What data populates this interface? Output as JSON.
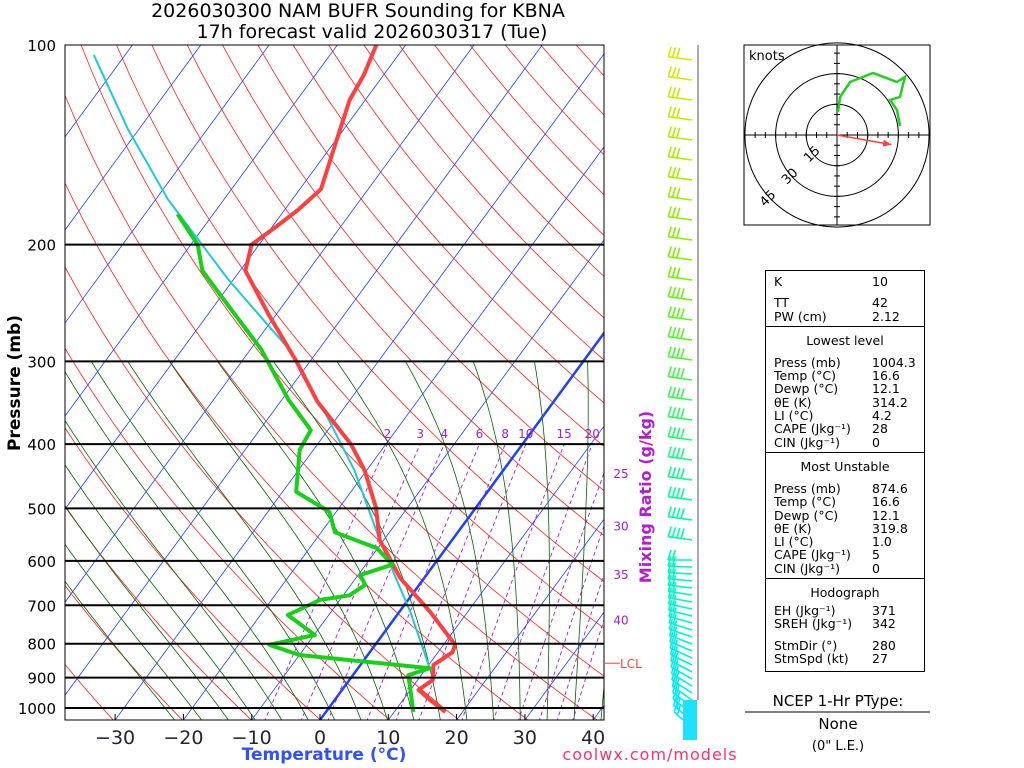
{
  "title": {
    "line1": "2026030300 NAM BUFR Sounding for KBNA",
    "line2": "17h forecast valid 2026030317 (Tue)"
  },
  "footer": {
    "site": "coolwx.com/models"
  },
  "ptype": {
    "header": "NCEP 1-Hr PType:",
    "value": "None",
    "amount": "(0\" L.E.)"
  },
  "stats": {
    "top": [
      [
        "K",
        "10"
      ],
      [
        "TT",
        "42"
      ],
      [
        "PW (cm)",
        "2.12"
      ]
    ],
    "lowest_title": "Lowest level",
    "lowest": [
      [
        "Press (mb)",
        "1004.3"
      ],
      [
        "Temp (°C)",
        "16.6"
      ],
      [
        "Dewp (°C)",
        "12.1"
      ],
      [
        "θE (K)",
        "314.2"
      ],
      [
        "LI (°C)",
        "4.2"
      ],
      [
        "CAPE (Jkg⁻¹)",
        "28"
      ],
      [
        "CIN (Jkg⁻¹)",
        "0"
      ]
    ],
    "mu_title": "Most Unstable",
    "mu": [
      [
        "Press (mb)",
        "874.6"
      ],
      [
        "Temp (°C)",
        "16.6"
      ],
      [
        "Dewp (°C)",
        "12.1"
      ],
      [
        "θE (K)",
        "319.8"
      ],
      [
        "LI (°C)",
        "1.0"
      ],
      [
        "CAPE (Jkg⁻¹)",
        "5"
      ],
      [
        "CIN (Jkg⁻¹)",
        "0"
      ]
    ],
    "hodo_title": "Hodograph",
    "hodo": [
      [
        "EH (Jkg⁻¹)",
        "371"
      ],
      [
        "SREH (Jkg⁻¹)",
        "342"
      ]
    ],
    "storm": [
      [
        "StmDir (°)",
        "280"
      ],
      [
        "StmSpd (kt)",
        "27"
      ]
    ]
  },
  "colors": {
    "temperature": "#ff4040",
    "dewpoint": "#18d018",
    "parcel": "#20c8d8",
    "isotherm": "#2040ff",
    "dry_adiabat": "#ff2020",
    "moist_adiabat": "#006400",
    "mixing_ratio": "#a020d0"
  },
  "chart_data": {
    "type": "line",
    "title": "Skew-T log-P sounding",
    "xlabel": "Temperature (°C)",
    "ylabel": "Pressure (mb)",
    "y2label": "Mixing Ratio (g/kg)",
    "xticks": [
      -30,
      -20,
      -10,
      0,
      10,
      20,
      30,
      40
    ],
    "yticks": [
      100,
      200,
      300,
      400,
      500,
      600,
      700,
      800,
      900,
      1000
    ],
    "ylim": [
      1050,
      100
    ],
    "lcl_label": "LCL",
    "lcl_pressure": 871,
    "mixing_ratio_lines": [
      2,
      3,
      4,
      6,
      8,
      10,
      15,
      20,
      25,
      30,
      35,
      40
    ],
    "series": [
      {
        "name": "temperature",
        "points": [
          [
            1014,
            17.5
          ],
          [
            973,
            14.0
          ],
          [
            939,
            11.2
          ],
          [
            907,
            12.2
          ],
          [
            861,
            10.7
          ],
          [
            824,
            12.1
          ],
          [
            803,
            11.7
          ],
          [
            716,
            4.5
          ],
          [
            637,
            -3.5
          ],
          [
            558,
            -10.6
          ],
          [
            499,
            -14.6
          ],
          [
            438,
            -20.3
          ],
          [
            400,
            -25.1
          ],
          [
            345,
            -34.6
          ],
          [
            300,
            -42.0
          ],
          [
            255,
            -51.1
          ],
          [
            219,
            -59.2
          ],
          [
            200,
            -61.1
          ],
          [
            187,
            -59.3
          ],
          [
            177,
            -58.0
          ],
          [
            165,
            -56.9
          ],
          [
            139,
            -59.9
          ],
          [
            121,
            -62.3
          ],
          [
            111,
            -62.9
          ],
          [
            100,
            -64.3
          ]
        ]
      },
      {
        "name": "dewpoint",
        "points": [
          [
            1014,
            12.8
          ],
          [
            939,
            10.0
          ],
          [
            892,
            8.1
          ],
          [
            871,
            10.5
          ],
          [
            832,
            -10.0
          ],
          [
            803,
            -15.5
          ],
          [
            776,
            -9.9
          ],
          [
            724,
            -16.0
          ],
          [
            687,
            -12.9
          ],
          [
            676,
            -9.1
          ],
          [
            652,
            -7.9
          ],
          [
            630,
            -9.7
          ],
          [
            608,
            -6.1
          ],
          [
            574,
            -10.1
          ],
          [
            543,
            -18.0
          ],
          [
            506,
            -21.0
          ],
          [
            472,
            -28.0
          ],
          [
            408,
            -32.0
          ],
          [
            381,
            -32.5
          ],
          [
            343,
            -39.0
          ],
          [
            288,
            -48.4
          ],
          [
            242,
            -59.3
          ],
          [
            219,
            -65.5
          ],
          [
            200,
            -69.0
          ],
          [
            180,
            -75.2
          ]
        ]
      },
      {
        "name": "parcel",
        "points": [
          [
            871,
            10.5
          ],
          [
            716,
            1.6
          ],
          [
            558,
            -10.6
          ],
          [
            438,
            -21.8
          ],
          [
            368,
            -30.9
          ],
          [
            288,
            -44.3
          ],
          [
            226,
            -60.7
          ],
          [
            171,
            -78.2
          ],
          [
            134,
            -91.6
          ],
          [
            103.5,
            -104.6
          ]
        ]
      }
    ],
    "hodograph": {
      "units_label": "knots",
      "rings": [
        15,
        30,
        45
      ],
      "points_uv": [
        [
          0.5,
          11.2
        ],
        [
          1.5,
          18.6
        ],
        [
          6.4,
          25.9
        ],
        [
          17.6,
          30.3
        ],
        [
          29.3,
          25.9
        ],
        [
          33.2,
          28.4
        ],
        [
          30.8,
          18.6
        ],
        [
          25.9,
          17.1
        ],
        [
          29.3,
          12.2
        ],
        [
          30.8,
          4.4
        ]
      ],
      "storm_motion": {
        "dir_deg": 280,
        "speed_kt": 27
      }
    }
  }
}
